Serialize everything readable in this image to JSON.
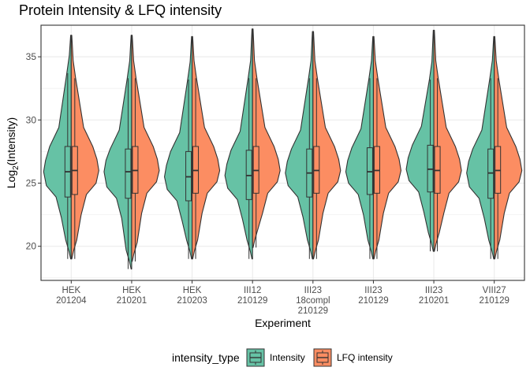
{
  "chart_data": {
    "type": "split-violin-boxplot",
    "title": "Protein Intensity & LFQ intensity",
    "xlabel": "Experiment",
    "ylabel": "Log2(Intensity)",
    "ylabel_main": "Log",
    "ylabel_sub": "2",
    "ylabel_rest": "(Intensity)",
    "ylim": [
      17.3,
      37.5
    ],
    "yticks": [
      20,
      25,
      30,
      35
    ],
    "grid": true,
    "legend_position": "bottom",
    "legend_title": "intensity_type",
    "categories": [
      [
        "HEK",
        "201204"
      ],
      [
        "HEK",
        "210201"
      ],
      [
        "HEK",
        "210203"
      ],
      [
        "III12",
        "210129"
      ],
      [
        "III23",
        "18compl",
        "210129"
      ],
      [
        "III23",
        "210129"
      ],
      [
        "III23",
        "210201"
      ],
      [
        "VIII27",
        "210129"
      ]
    ],
    "series": [
      {
        "name": "Intensity",
        "color": "#66c2a5",
        "boxes": [
          {
            "min": 19.0,
            "q1": 23.9,
            "median": 25.9,
            "q3": 27.9,
            "max": 33.7,
            "top": 36.7,
            "bottom": 19.0
          },
          {
            "min": 18.2,
            "q1": 23.8,
            "median": 25.9,
            "q3": 27.7,
            "max": 33.3,
            "top": 36.7,
            "bottom": 18.2
          },
          {
            "min": 19.0,
            "q1": 23.6,
            "median": 25.5,
            "q3": 27.5,
            "max": 33.2,
            "top": 36.6,
            "bottom": 19.0
          },
          {
            "min": 19.0,
            "q1": 23.7,
            "median": 25.6,
            "q3": 27.6,
            "max": 33.3,
            "top": 37.2,
            "bottom": 19.0
          },
          {
            "min": 19.0,
            "q1": 23.9,
            "median": 25.8,
            "q3": 27.7,
            "max": 33.3,
            "top": 37.0,
            "bottom": 19.0
          },
          {
            "min": 19.0,
            "q1": 24.1,
            "median": 25.9,
            "q3": 27.8,
            "max": 33.3,
            "top": 36.6,
            "bottom": 19.0
          },
          {
            "min": 19.6,
            "q1": 24.3,
            "median": 26.1,
            "q3": 28.0,
            "max": 33.2,
            "top": 37.1,
            "bottom": 19.6
          },
          {
            "min": 19.0,
            "q1": 23.8,
            "median": 25.8,
            "q3": 27.7,
            "max": 33.3,
            "top": 36.6,
            "bottom": 19.0
          }
        ]
      },
      {
        "name": "LFQ intensity",
        "color": "#fc8d62",
        "boxes": [
          {
            "min": 19.0,
            "q1": 24.1,
            "median": 26.0,
            "q3": 27.9,
            "max": 33.3,
            "top": 36.7,
            "bottom": 19.0
          },
          {
            "min": 18.8,
            "q1": 24.2,
            "median": 26.0,
            "q3": 27.9,
            "max": 33.3,
            "top": 36.7,
            "bottom": 18.8
          },
          {
            "min": 19.0,
            "q1": 24.2,
            "median": 26.0,
            "q3": 27.9,
            "max": 33.3,
            "top": 36.6,
            "bottom": 19.0
          },
          {
            "min": 19.9,
            "q1": 24.2,
            "median": 26.0,
            "q3": 27.9,
            "max": 33.3,
            "top": 37.2,
            "bottom": 19.9
          },
          {
            "min": 19.0,
            "q1": 24.2,
            "median": 26.0,
            "q3": 27.9,
            "max": 33.3,
            "top": 37.0,
            "bottom": 19.0
          },
          {
            "min": 19.0,
            "q1": 24.2,
            "median": 26.0,
            "q3": 27.9,
            "max": 33.3,
            "top": 36.6,
            "bottom": 19.0
          },
          {
            "min": 19.6,
            "q1": 24.2,
            "median": 26.0,
            "q3": 27.9,
            "max": 33.3,
            "top": 37.1,
            "bottom": 19.6
          },
          {
            "min": 19.0,
            "q1": 24.2,
            "median": 26.0,
            "q3": 27.9,
            "max": 33.3,
            "top": 36.6,
            "bottom": 19.0
          }
        ]
      }
    ]
  }
}
